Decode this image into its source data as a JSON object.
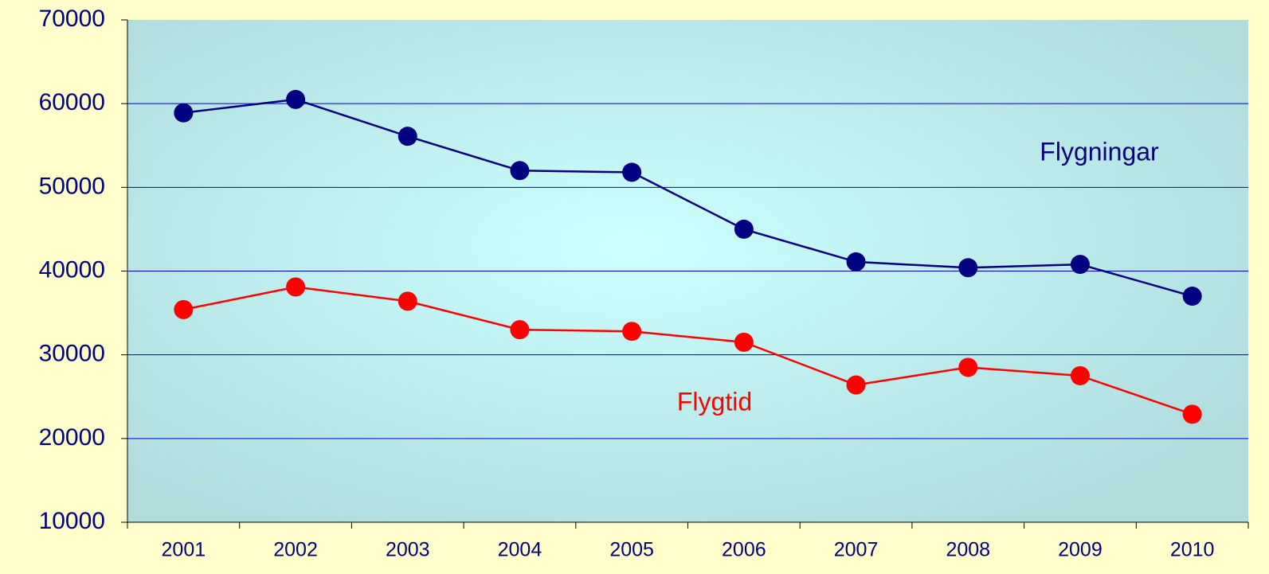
{
  "chart_data": {
    "type": "line",
    "categories": [
      "2001",
      "2002",
      "2003",
      "2004",
      "2005",
      "2006",
      "2007",
      "2008",
      "2009",
      "2010"
    ],
    "series": [
      {
        "name": "Flygningar",
        "color": "#000080",
        "values": [
          58900,
          60500,
          56100,
          52000,
          51800,
          45000,
          41100,
          40400,
          40800,
          37000
        ]
      },
      {
        "name": "Flygtid",
        "color": "#ff0000",
        "values": [
          35400,
          38100,
          36400,
          33000,
          32800,
          31500,
          26400,
          28500,
          27500,
          22900
        ]
      }
    ],
    "ylim": [
      10000,
      70000
    ],
    "yticks": [
      10000,
      20000,
      30000,
      40000,
      50000,
      60000,
      70000
    ],
    "grid": true
  }
}
